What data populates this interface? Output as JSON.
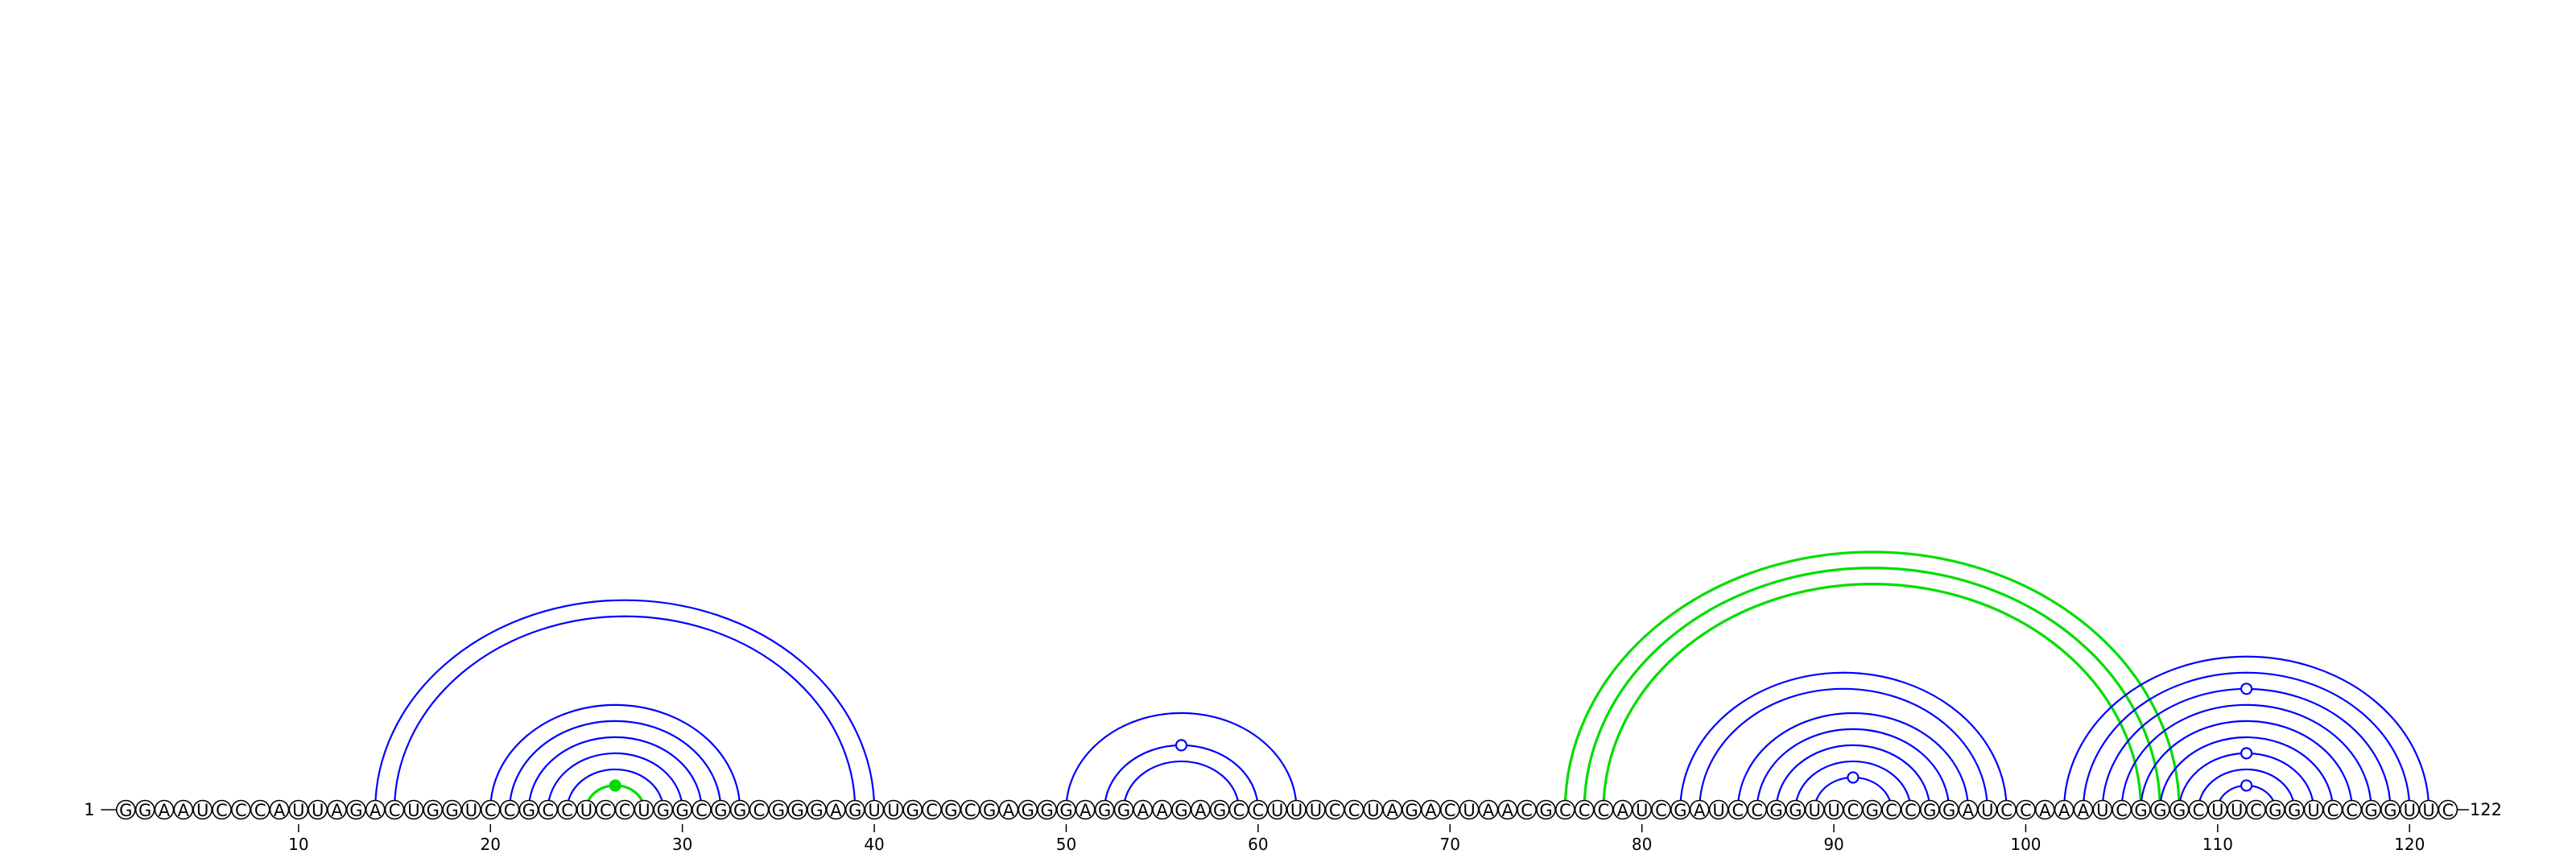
{
  "sequence": "GGAAUCCCAUUAGACUGGUCCGCCUCCUGGCGGCGGGAGUUGCGCGAGGGAGGAAGAGCCUUUCCUAGACUAACGCCCAUCGAUCCGGUUCGCCGGAUCCAAAUCGGGCUUCGGUCCGGUUC",
  "five_prime_label": "1",
  "three_prime_label": "122",
  "position_ticks": [
    10,
    20,
    30,
    40,
    50,
    60,
    70,
    80,
    90,
    100,
    110,
    120
  ],
  "colors": {
    "pair_blue": "#0000ff",
    "pair_green": "#00dd00"
  },
  "pairs": [
    {
      "i": 14,
      "j": 40,
      "color": "blue"
    },
    {
      "i": 15,
      "j": 39,
      "color": "blue"
    },
    {
      "i": 20,
      "j": 33,
      "color": "blue"
    },
    {
      "i": 21,
      "j": 32,
      "color": "blue"
    },
    {
      "i": 22,
      "j": 31,
      "color": "blue"
    },
    {
      "i": 23,
      "j": 30,
      "color": "blue"
    },
    {
      "i": 24,
      "j": 29,
      "color": "blue"
    },
    {
      "i": 25,
      "j": 28,
      "color": "green"
    },
    {
      "i": 50,
      "j": 62,
      "color": "blue"
    },
    {
      "i": 52,
      "j": 60,
      "color": "blue"
    },
    {
      "i": 53,
      "j": 59,
      "color": "blue"
    },
    {
      "i": 76,
      "j": 108,
      "color": "green"
    },
    {
      "i": 77,
      "j": 107,
      "color": "green"
    },
    {
      "i": 78,
      "j": 106,
      "color": "green"
    },
    {
      "i": 82,
      "j": 99,
      "color": "blue"
    },
    {
      "i": 83,
      "j": 98,
      "color": "blue"
    },
    {
      "i": 85,
      "j": 97,
      "color": "blue"
    },
    {
      "i": 86,
      "j": 96,
      "color": "blue"
    },
    {
      "i": 87,
      "j": 95,
      "color": "blue"
    },
    {
      "i": 88,
      "j": 94,
      "color": "blue"
    },
    {
      "i": 89,
      "j": 93,
      "color": "blue"
    },
    {
      "i": 102,
      "j": 121,
      "color": "blue"
    },
    {
      "i": 103,
      "j": 120,
      "color": "blue"
    },
    {
      "i": 104,
      "j": 119,
      "color": "blue"
    },
    {
      "i": 105,
      "j": 118,
      "color": "blue"
    },
    {
      "i": 106,
      "j": 117,
      "color": "blue"
    },
    {
      "i": 107,
      "j": 116,
      "color": "blue"
    },
    {
      "i": 108,
      "j": 115,
      "color": "blue"
    },
    {
      "i": 109,
      "j": 114,
      "color": "blue"
    },
    {
      "i": 110,
      "j": 113,
      "color": "blue"
    }
  ],
  "gu_markers": [
    {
      "i": 25,
      "j": 28,
      "color": "green",
      "filled": true
    },
    {
      "i": 52,
      "j": 60,
      "color": "blue",
      "filled": false
    },
    {
      "i": 89,
      "j": 93,
      "color": "blue",
      "filled": false
    },
    {
      "i": 104,
      "j": 119,
      "color": "blue",
      "filled": false
    },
    {
      "i": 108,
      "j": 115,
      "color": "blue",
      "filled": false
    },
    {
      "i": 110,
      "j": 113,
      "color": "blue",
      "filled": false
    }
  ]
}
